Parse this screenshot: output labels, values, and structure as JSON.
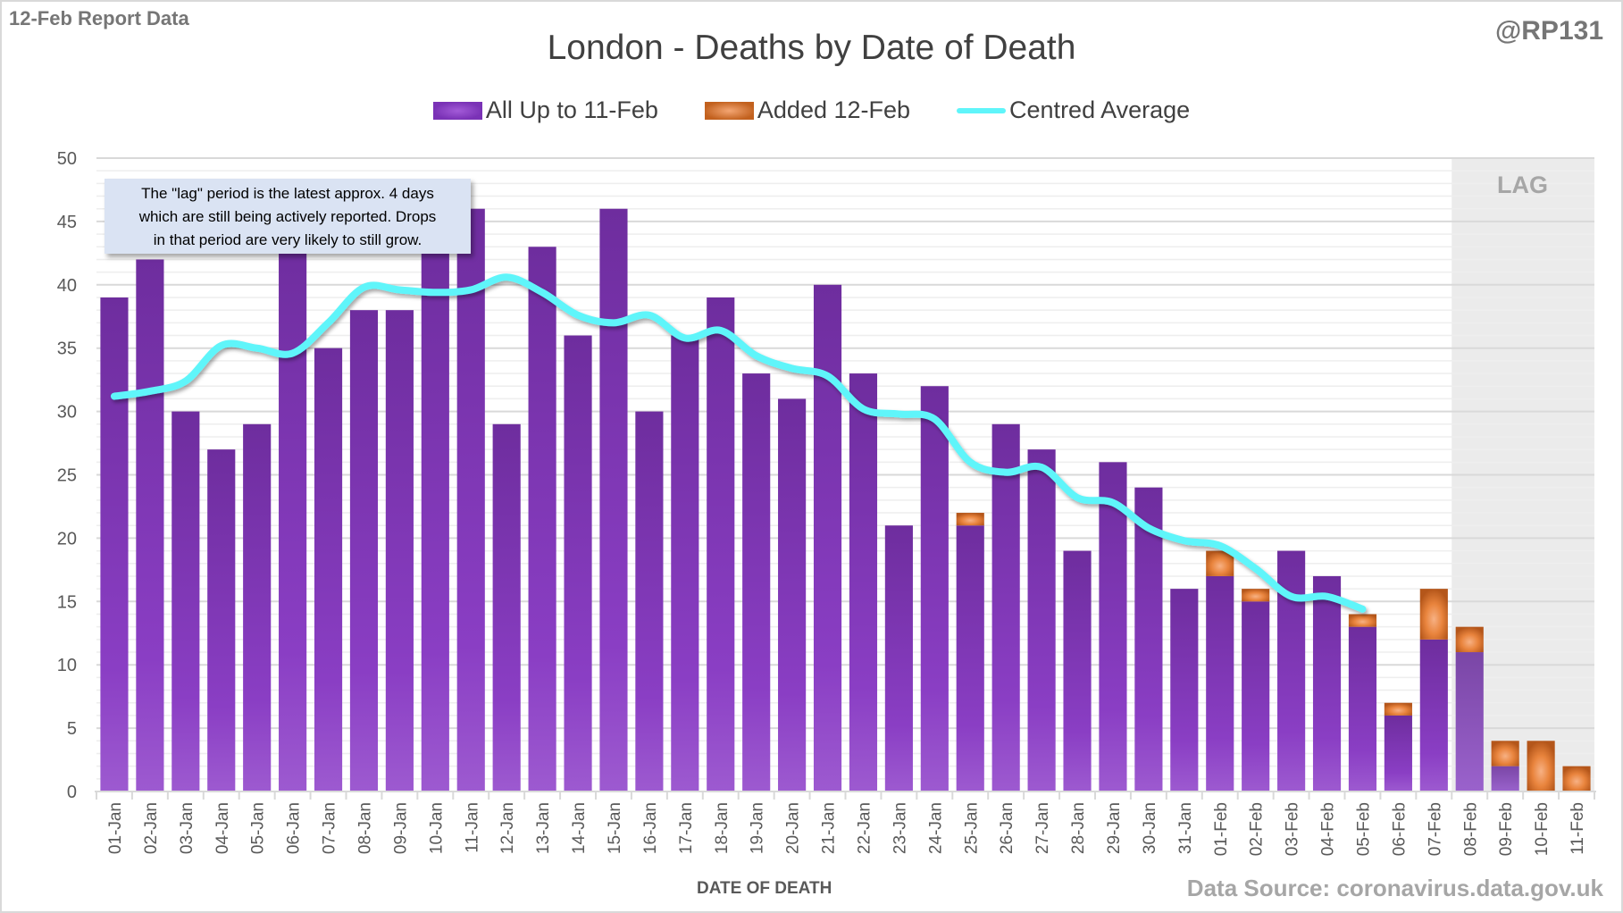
{
  "header": {
    "report_label": "12-Feb Report Data",
    "author_handle": "@RP131"
  },
  "footer": {
    "source": "Data Source: coronavirus.data.gov.uk"
  },
  "annotation": {
    "lines": [
      "The \"lag\" period is the latest approx. 4 days",
      "which are still being actively reported.  Drops",
      "in that period are very likely to still grow."
    ],
    "lag_label": "LAG",
    "lag_categories": [
      "08-Feb",
      "09-Feb",
      "10-Feb",
      "11-Feb"
    ]
  },
  "colors": {
    "series_base": "#7a32b6",
    "series_added": "#d2691e",
    "average_line": "#5ff5fa",
    "lag_shade": "#ebebeb",
    "callout_bg": "#dae3f3"
  },
  "chart_data": {
    "type": "bar",
    "stacked": true,
    "title": "London - Deaths by Date of Death",
    "xlabel": "DATE OF DEATH",
    "ylabel": "",
    "ylim": [
      0,
      50
    ],
    "yticks": [
      0,
      5,
      10,
      15,
      20,
      25,
      30,
      35,
      40,
      45,
      50
    ],
    "grid": {
      "major_every": 5,
      "minor_every": 1
    },
    "legend_position": "top-center",
    "categories": [
      "01-Jan",
      "02-Jan",
      "03-Jan",
      "04-Jan",
      "05-Jan",
      "06-Jan",
      "07-Jan",
      "08-Jan",
      "09-Jan",
      "10-Jan",
      "11-Jan",
      "12-Jan",
      "13-Jan",
      "14-Jan",
      "15-Jan",
      "16-Jan",
      "17-Jan",
      "18-Jan",
      "19-Jan",
      "20-Jan",
      "21-Jan",
      "22-Jan",
      "23-Jan",
      "24-Jan",
      "25-Jan",
      "26-Jan",
      "27-Jan",
      "28-Jan",
      "29-Jan",
      "30-Jan",
      "31-Jan",
      "01-Feb",
      "02-Feb",
      "03-Feb",
      "04-Feb",
      "05-Feb",
      "06-Feb",
      "07-Feb",
      "08-Feb",
      "09-Feb",
      "10-Feb",
      "11-Feb"
    ],
    "series": [
      {
        "name": "All Up to 11-Feb",
        "kind": "bar",
        "values": [
          39,
          42,
          30,
          27,
          29,
          44,
          35,
          38,
          38,
          44,
          46,
          29,
          43,
          36,
          46,
          30,
          36,
          39,
          33,
          31,
          40,
          33,
          21,
          32,
          21,
          29,
          27,
          19,
          26,
          24,
          16,
          17,
          15,
          19,
          17,
          13,
          6,
          12,
          11,
          2,
          0,
          0
        ]
      },
      {
        "name": "Added 12-Feb",
        "kind": "bar",
        "values": [
          0,
          0,
          0,
          0,
          0,
          0,
          0,
          0,
          0,
          0,
          0,
          0,
          0,
          0,
          0,
          0,
          0,
          0,
          0,
          0,
          0,
          0,
          0,
          0,
          1,
          0,
          0,
          0,
          0,
          0,
          0,
          2,
          1,
          0,
          0,
          1,
          1,
          4,
          2,
          2,
          4,
          2
        ]
      },
      {
        "name": "Centred Average",
        "kind": "line",
        "values": [
          31.2,
          31.6,
          32.4,
          35.2,
          35.0,
          34.6,
          37.0,
          39.8,
          39.6,
          39.4,
          39.6,
          40.6,
          39.4,
          37.6,
          37.0,
          37.6,
          35.8,
          36.4,
          34.4,
          33.4,
          32.8,
          30.2,
          29.8,
          29.4,
          26.0,
          25.2,
          25.6,
          23.2,
          22.8,
          20.8,
          19.8,
          19.4,
          17.6,
          15.4,
          15.4,
          14.4,
          null,
          null,
          null,
          null,
          null,
          null
        ]
      }
    ]
  }
}
